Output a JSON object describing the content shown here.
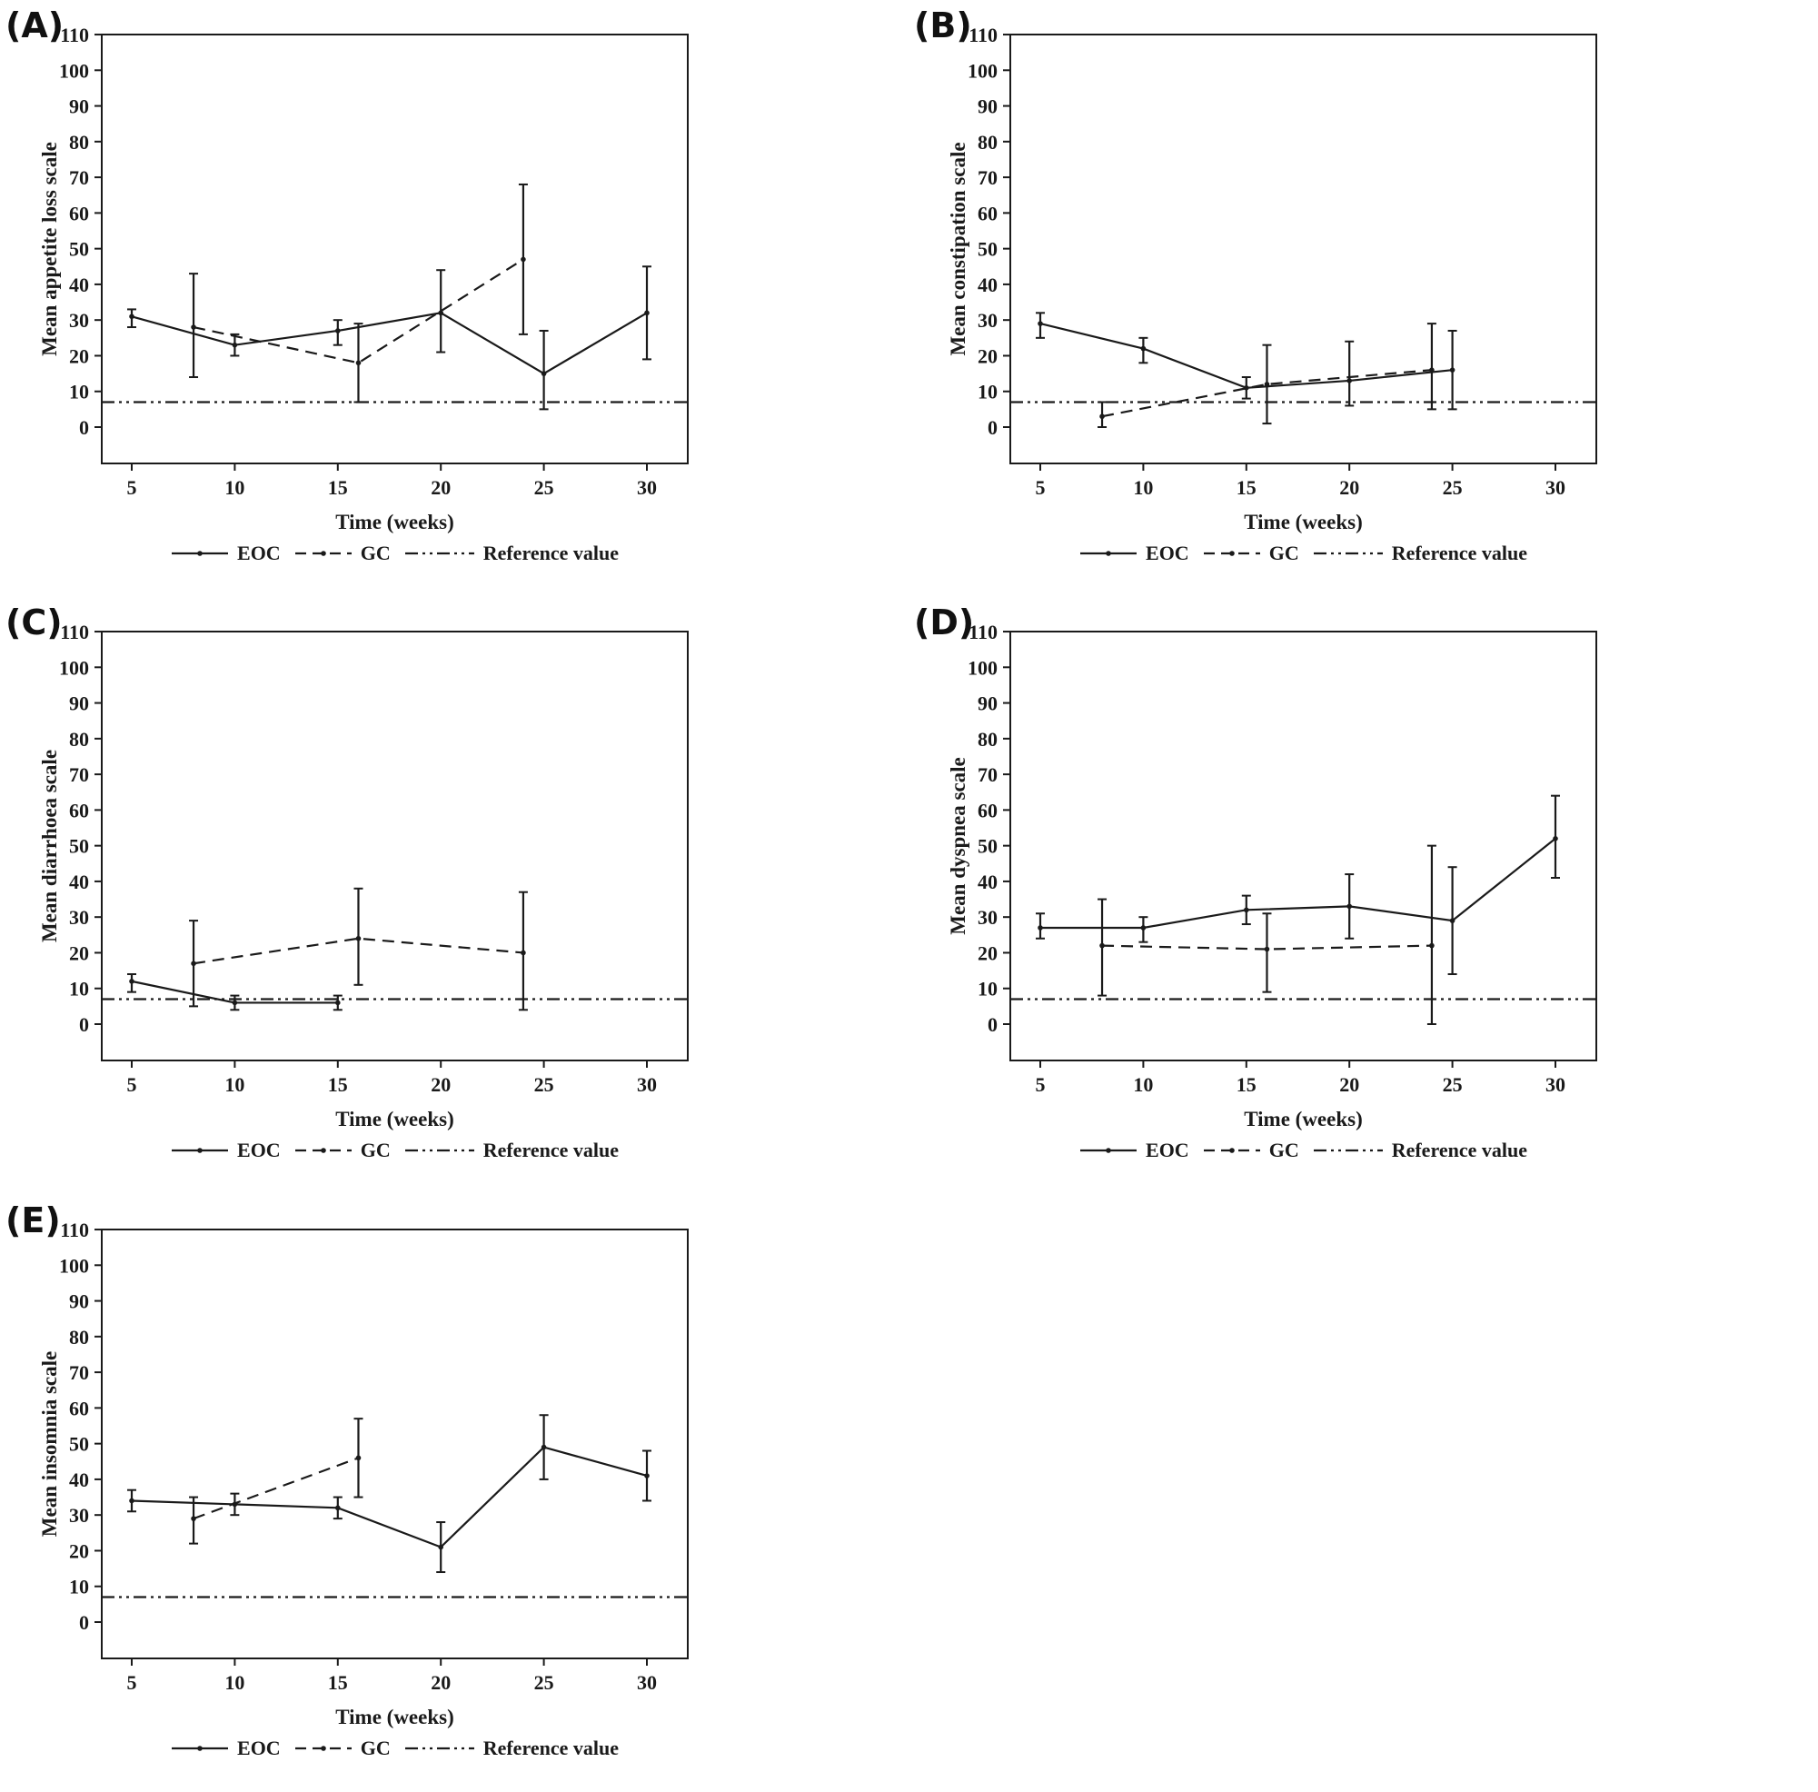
{
  "figure": {
    "background": "#ffffff",
    "line_color": "#1a1a1a",
    "reference_value": 7
  },
  "chart_data": [
    {
      "type": "line",
      "panel_label": "(A)",
      "ylabel": "Mean appetite loss scale",
      "xlabel": "Time (weeks)",
      "yticks": [
        0,
        10,
        20,
        30,
        40,
        50,
        60,
        70,
        80,
        90,
        100,
        110
      ],
      "xticks": [
        5,
        10,
        15,
        20,
        25,
        30
      ],
      "ylim": [
        -10,
        110
      ],
      "xlim": [
        3.5,
        32
      ],
      "reference_value": 7,
      "legend": {
        "eoc": "EOC",
        "gc": "GC",
        "reference": "Reference value"
      },
      "series": [
        {
          "name": "EOC",
          "style": "solid",
          "x": [
            5,
            10,
            15,
            20,
            25,
            30
          ],
          "y": [
            31,
            23,
            27,
            32,
            15,
            32
          ],
          "lo": [
            28,
            20,
            23,
            21,
            5,
            19
          ],
          "hi": [
            33,
            26,
            30,
            44,
            27,
            45
          ]
        },
        {
          "name": "GC",
          "style": "dashed",
          "x": [
            8,
            16,
            24
          ],
          "y": [
            28,
            18,
            47
          ],
          "lo": [
            14,
            7,
            26
          ],
          "hi": [
            43,
            29,
            68
          ]
        }
      ]
    },
    {
      "type": "line",
      "panel_label": "(B)",
      "ylabel": "Mean constipation scale",
      "xlabel": "Time (weeks)",
      "yticks": [
        0,
        10,
        20,
        30,
        40,
        50,
        60,
        70,
        80,
        90,
        100,
        110
      ],
      "xticks": [
        5,
        10,
        15,
        20,
        25,
        30
      ],
      "ylim": [
        -10,
        110
      ],
      "xlim": [
        3.5,
        32
      ],
      "reference_value": 7,
      "legend": {
        "eoc": "EOC",
        "gc": "GC",
        "reference": "Reference value"
      },
      "series": [
        {
          "name": "EOC",
          "style": "solid",
          "x": [
            5,
            10,
            15,
            20,
            25
          ],
          "y": [
            29,
            22,
            11,
            13,
            16
          ],
          "lo": [
            25,
            18,
            8,
            6,
            5
          ],
          "hi": [
            32,
            25,
            14,
            24,
            27
          ]
        },
        {
          "name": "GC",
          "style": "dashed",
          "x": [
            8,
            16,
            24
          ],
          "y": [
            3,
            12,
            16
          ],
          "lo": [
            0,
            1,
            5
          ],
          "hi": [
            7,
            23,
            29
          ]
        }
      ]
    },
    {
      "type": "line",
      "panel_label": "(C)",
      "ylabel": "Mean diarrhoea scale",
      "xlabel": "Time (weeks)",
      "yticks": [
        0,
        10,
        20,
        30,
        40,
        50,
        60,
        70,
        80,
        90,
        100,
        110
      ],
      "xticks": [
        5,
        10,
        15,
        20,
        25,
        30
      ],
      "ylim": [
        -10,
        110
      ],
      "xlim": [
        3.5,
        32
      ],
      "reference_value": 7,
      "legend": {
        "eoc": "EOC",
        "gc": "GC",
        "reference": "Reference value"
      },
      "series": [
        {
          "name": "EOC",
          "style": "solid",
          "x": [
            5,
            10,
            15
          ],
          "y": [
            12,
            6,
            6
          ],
          "lo": [
            9,
            4,
            4
          ],
          "hi": [
            14,
            8,
            8
          ]
        },
        {
          "name": "GC",
          "style": "dashed",
          "x": [
            8,
            16,
            24
          ],
          "y": [
            17,
            24,
            20
          ],
          "lo": [
            5,
            11,
            4
          ],
          "hi": [
            29,
            38,
            37
          ]
        }
      ]
    },
    {
      "type": "line",
      "panel_label": "(D)",
      "ylabel": "Mean dyspnea scale",
      "xlabel": "Time (weeks)",
      "yticks": [
        0,
        10,
        20,
        30,
        40,
        50,
        60,
        70,
        80,
        90,
        100,
        110
      ],
      "xticks": [
        5,
        10,
        15,
        20,
        25,
        30
      ],
      "ylim": [
        -10,
        110
      ],
      "xlim": [
        3.5,
        32
      ],
      "reference_value": 7,
      "legend": {
        "eoc": "EOC",
        "gc": "GC",
        "reference": "Reference value"
      },
      "series": [
        {
          "name": "EOC",
          "style": "solid",
          "x": [
            5,
            10,
            15,
            20,
            25,
            30
          ],
          "y": [
            27,
            27,
            32,
            33,
            29,
            52
          ],
          "lo": [
            24,
            23,
            28,
            24,
            14,
            41
          ],
          "hi": [
            31,
            30,
            36,
            42,
            44,
            64
          ]
        },
        {
          "name": "GC",
          "style": "dashed",
          "x": [
            8,
            16,
            24
          ],
          "y": [
            22,
            21,
            22
          ],
          "lo": [
            8,
            9,
            0
          ],
          "hi": [
            35,
            31,
            50
          ]
        }
      ]
    },
    {
      "type": "line",
      "panel_label": "(E)",
      "ylabel": "Mean insomnia scale",
      "xlabel": "Time (weeks)",
      "yticks": [
        0,
        10,
        20,
        30,
        40,
        50,
        60,
        70,
        80,
        90,
        100,
        110
      ],
      "xticks": [
        5,
        10,
        15,
        20,
        25,
        30
      ],
      "ylim": [
        -10,
        110
      ],
      "xlim": [
        3.5,
        32
      ],
      "reference_value": 7,
      "legend": {
        "eoc": "EOC",
        "gc": "GC",
        "reference": "Reference value"
      },
      "series": [
        {
          "name": "EOC",
          "style": "solid",
          "x": [
            5,
            10,
            15,
            20,
            25,
            30
          ],
          "y": [
            34,
            33,
            32,
            21,
            49,
            41
          ],
          "lo": [
            31,
            30,
            29,
            14,
            40,
            34
          ],
          "hi": [
            37,
            36,
            35,
            28,
            58,
            48
          ]
        },
        {
          "name": "GC",
          "style": "dashed",
          "x": [
            8,
            16
          ],
          "y": [
            29,
            46
          ],
          "lo": [
            22,
            35
          ],
          "hi": [
            35,
            57
          ]
        }
      ]
    }
  ]
}
